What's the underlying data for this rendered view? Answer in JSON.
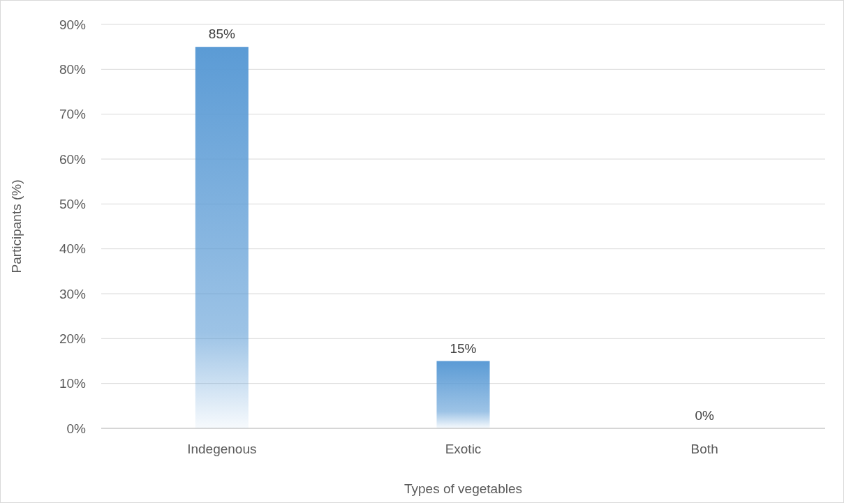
{
  "chart_data": {
    "type": "bar",
    "xlabel": "Types of vegetables",
    "ylabel": "Participants (%)",
    "categories": [
      "Indegenous",
      "Exotic",
      "Both"
    ],
    "values": [
      85,
      15,
      0
    ],
    "value_labels": [
      "85%",
      "15%",
      "0%"
    ],
    "color": "#5b9bd5",
    "ylim": [
      0,
      90
    ],
    "yticks": [
      {
        "value": 0,
        "label": "0%"
      },
      {
        "value": 10,
        "label": "10%"
      },
      {
        "value": 20,
        "label": "20%"
      },
      {
        "value": 30,
        "label": "30%"
      },
      {
        "value": 40,
        "label": "40%"
      },
      {
        "value": 50,
        "label": "50%"
      },
      {
        "value": 60,
        "label": "60%"
      },
      {
        "value": 70,
        "label": "70%"
      },
      {
        "value": 80,
        "label": "80%"
      },
      {
        "value": 90,
        "label": "90%"
      }
    ],
    "grid": "y"
  }
}
